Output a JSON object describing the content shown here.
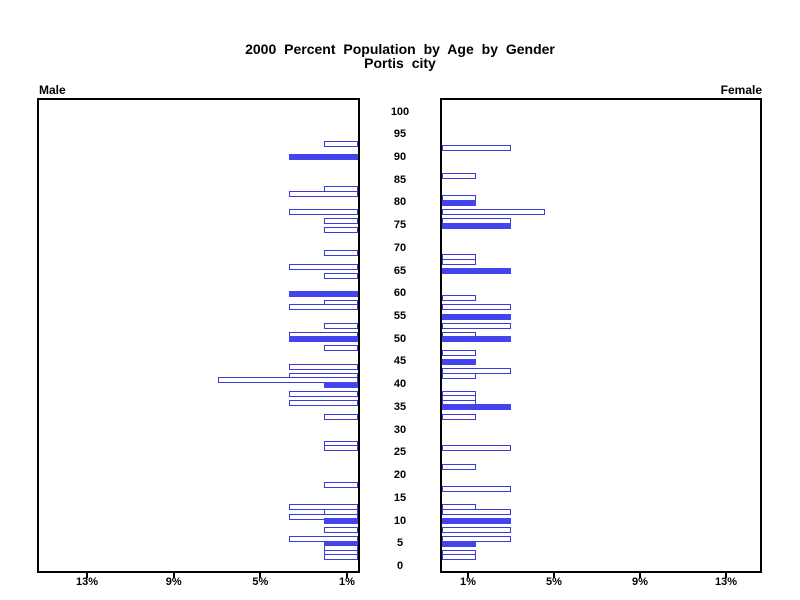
{
  "page": {
    "background": "#ffffff"
  },
  "header": {
    "title": "2000 Percent Population by Age by Gender",
    "subtitle": "Portis city"
  },
  "chart_data": {
    "type": "bar",
    "variant": "population-pyramid",
    "title": "2000 Percent Population by Age by Gender",
    "subtitle": "Portis city",
    "left_header": "Male",
    "right_header": "Female",
    "grid": "off",
    "legend": "none",
    "fill_rule": "bars at ages divisible by 5 are solid blue; other ages are white with blue outline",
    "colors": {
      "bar_fill": "#4444ee",
      "bar_outline": "#3b3bdc",
      "bar_outline_fill": "#ffffff",
      "axis": "#000000",
      "text": "#000000",
      "background": "#ffffff"
    },
    "age_axis": {
      "min": 0,
      "max": 100,
      "step": 5,
      "ticks": [
        0,
        5,
        10,
        15,
        20,
        25,
        30,
        35,
        40,
        45,
        50,
        55,
        60,
        65,
        70,
        75,
        80,
        85,
        90,
        95,
        100
      ]
    },
    "pct_axis": {
      "unit": "percent of population",
      "max": 15,
      "male_tick_labels": [
        "13%",
        "9%",
        "5%",
        "1%"
      ],
      "female_tick_labels": [
        "1%",
        "5%",
        "9%",
        "13%"
      ]
    },
    "series": [
      {
        "name": "Male",
        "side": "left",
        "points": [
          {
            "age": 93,
            "pct": 1.6,
            "filled": false
          },
          {
            "age": 90,
            "pct": 3.2,
            "filled": true
          },
          {
            "age": 83,
            "pct": 1.6,
            "filled": false
          },
          {
            "age": 82,
            "pct": 3.2,
            "filled": false
          },
          {
            "age": 78,
            "pct": 3.2,
            "filled": false
          },
          {
            "age": 76,
            "pct": 1.6,
            "filled": false
          },
          {
            "age": 74,
            "pct": 1.6,
            "filled": false
          },
          {
            "age": 69,
            "pct": 1.6,
            "filled": false
          },
          {
            "age": 66,
            "pct": 3.2,
            "filled": false
          },
          {
            "age": 64,
            "pct": 1.6,
            "filled": false
          },
          {
            "age": 60,
            "pct": 3.2,
            "filled": true
          },
          {
            "age": 58,
            "pct": 1.6,
            "filled": false
          },
          {
            "age": 57,
            "pct": 3.2,
            "filled": false
          },
          {
            "age": 53,
            "pct": 1.6,
            "filled": false
          },
          {
            "age": 51,
            "pct": 3.2,
            "filled": false
          },
          {
            "age": 50,
            "pct": 3.2,
            "filled": true
          },
          {
            "age": 48,
            "pct": 1.6,
            "filled": false
          },
          {
            "age": 44,
            "pct": 3.2,
            "filled": false
          },
          {
            "age": 42,
            "pct": 3.2,
            "filled": false
          },
          {
            "age": 41,
            "pct": 6.5,
            "filled": false
          },
          {
            "age": 40,
            "pct": 1.6,
            "filled": true
          },
          {
            "age": 38,
            "pct": 3.2,
            "filled": false
          },
          {
            "age": 36,
            "pct": 3.2,
            "filled": false
          },
          {
            "age": 33,
            "pct": 1.6,
            "filled": false
          },
          {
            "age": 27,
            "pct": 1.6,
            "filled": false
          },
          {
            "age": 26,
            "pct": 1.6,
            "filled": false
          },
          {
            "age": 18,
            "pct": 1.6,
            "filled": false
          },
          {
            "age": 13,
            "pct": 3.2,
            "filled": false
          },
          {
            "age": 12,
            "pct": 1.6,
            "filled": false
          },
          {
            "age": 11,
            "pct": 3.2,
            "filled": false
          },
          {
            "age": 10,
            "pct": 1.6,
            "filled": true
          },
          {
            "age": 8,
            "pct": 1.6,
            "filled": false
          },
          {
            "age": 6,
            "pct": 3.2,
            "filled": false
          },
          {
            "age": 5,
            "pct": 1.6,
            "filled": true
          },
          {
            "age": 4,
            "pct": 1.6,
            "filled": false
          },
          {
            "age": 3,
            "pct": 1.6,
            "filled": false
          },
          {
            "age": 2,
            "pct": 1.6,
            "filled": false
          }
        ]
      },
      {
        "name": "Female",
        "side": "right",
        "points": [
          {
            "age": 92,
            "pct": 3.2,
            "filled": false
          },
          {
            "age": 86,
            "pct": 1.6,
            "filled": false
          },
          {
            "age": 81,
            "pct": 1.6,
            "filled": false
          },
          {
            "age": 80,
            "pct": 1.6,
            "filled": true
          },
          {
            "age": 78,
            "pct": 4.8,
            "filled": false
          },
          {
            "age": 76,
            "pct": 3.2,
            "filled": false
          },
          {
            "age": 75,
            "pct": 3.2,
            "filled": true
          },
          {
            "age": 68,
            "pct": 1.6,
            "filled": false
          },
          {
            "age": 67,
            "pct": 1.6,
            "filled": false
          },
          {
            "age": 65,
            "pct": 3.2,
            "filled": true
          },
          {
            "age": 59,
            "pct": 1.6,
            "filled": false
          },
          {
            "age": 57,
            "pct": 3.2,
            "filled": false
          },
          {
            "age": 55,
            "pct": 3.2,
            "filled": true
          },
          {
            "age": 53,
            "pct": 3.2,
            "filled": false
          },
          {
            "age": 51,
            "pct": 1.6,
            "filled": false
          },
          {
            "age": 50,
            "pct": 3.2,
            "filled": true
          },
          {
            "age": 47,
            "pct": 1.6,
            "filled": false
          },
          {
            "age": 45,
            "pct": 1.6,
            "filled": true
          },
          {
            "age": 43,
            "pct": 3.2,
            "filled": false
          },
          {
            "age": 42,
            "pct": 1.6,
            "filled": false
          },
          {
            "age": 38,
            "pct": 1.6,
            "filled": false
          },
          {
            "age": 37,
            "pct": 1.6,
            "filled": false
          },
          {
            "age": 36,
            "pct": 1.6,
            "filled": false
          },
          {
            "age": 35,
            "pct": 3.2,
            "filled": true
          },
          {
            "age": 33,
            "pct": 1.6,
            "filled": false
          },
          {
            "age": 26,
            "pct": 3.2,
            "filled": false
          },
          {
            "age": 22,
            "pct": 1.6,
            "filled": false
          },
          {
            "age": 17,
            "pct": 3.2,
            "filled": false
          },
          {
            "age": 13,
            "pct": 1.6,
            "filled": false
          },
          {
            "age": 12,
            "pct": 3.2,
            "filled": false
          },
          {
            "age": 10,
            "pct": 3.2,
            "filled": true
          },
          {
            "age": 8,
            "pct": 3.2,
            "filled": false
          },
          {
            "age": 6,
            "pct": 3.2,
            "filled": false
          },
          {
            "age": 5,
            "pct": 1.6,
            "filled": true
          },
          {
            "age": 3,
            "pct": 1.6,
            "filled": false
          },
          {
            "age": 2,
            "pct": 1.6,
            "filled": false
          }
        ]
      }
    ]
  }
}
